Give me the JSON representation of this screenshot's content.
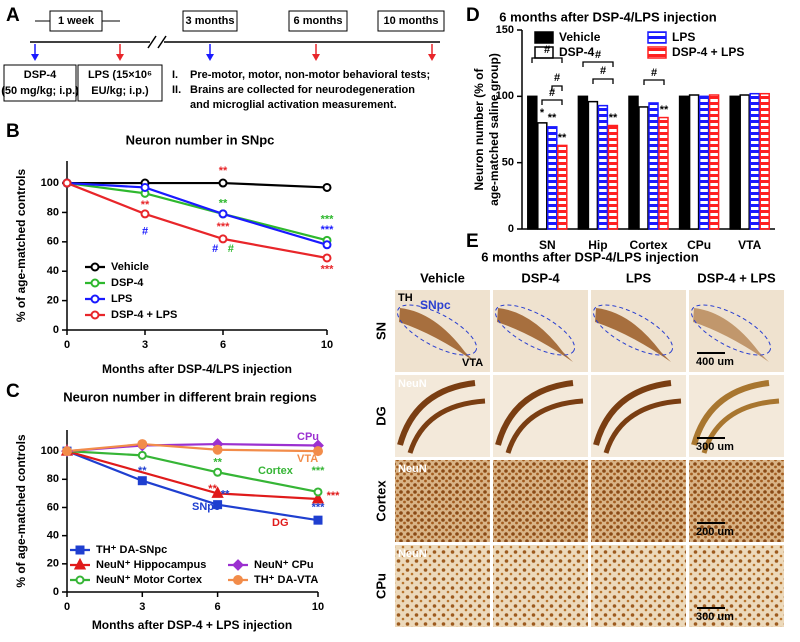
{
  "panel_a": {
    "label": "A",
    "week": "1 week",
    "timepoints": [
      "3 months",
      "6 months",
      "10 months"
    ],
    "boxes": [
      [
        "DSP-4",
        "(50 mg/kg; i.p.)"
      ],
      [
        "LPS (15×10⁶",
        "EU/kg; i.p.)"
      ]
    ],
    "notes": [
      [
        "I.",
        "Pre-motor, motor, non-motor behavioral tests;"
      ],
      [
        "II.",
        "Brains are collected for neurodegeneration"
      ],
      [
        "and microglial activation measurement."
      ]
    ]
  },
  "chart_data": [
    {
      "label": "B",
      "type": "line",
      "title": "Neuron number in SNpc",
      "xlabel": "Months after DSP-4/LPS injection",
      "ylabel": "% of age-matched controls",
      "x": [
        0,
        3,
        6,
        10
      ],
      "xlim": [
        0,
        10
      ],
      "xticks": [
        0,
        3,
        6,
        10
      ],
      "ylim": [
        0,
        115
      ],
      "yticks": [
        0,
        20,
        40,
        60,
        80,
        100
      ],
      "series": [
        {
          "name": "Vehicle",
          "color": "#000000",
          "marker": "circle-open",
          "values": [
            100,
            100,
            100,
            97
          ]
        },
        {
          "name": "DSP-4",
          "color": "#2eb82e",
          "marker": "circle-open",
          "values": [
            100,
            93,
            79,
            61
          ]
        },
        {
          "name": "LPS",
          "color": "#1a1aff",
          "marker": "circle-open",
          "values": [
            100,
            97,
            79,
            58
          ]
        },
        {
          "name": "DSP-4 + LPS",
          "color": "#e8262a",
          "marker": "circle-open",
          "values": [
            100,
            79,
            62,
            49
          ]
        }
      ],
      "annotations": [
        {
          "text": "**",
          "color": "#e8262a"
        },
        {
          "text": "#",
          "color": "#1a1aff"
        },
        {
          "text": "**",
          "color": "#e8262a"
        },
        {
          "text": "**",
          "color": "#2eb82e"
        },
        {
          "text": "***",
          "color": "#e8262a"
        },
        {
          "text": "#",
          "color": "#1a1aff"
        },
        {
          "text": "#",
          "color": "#2eb82e"
        },
        {
          "text": "***",
          "color": "#2eb82e"
        },
        {
          "text": "***",
          "color": "#1a1aff"
        },
        {
          "text": "***",
          "color": "#e8262a"
        }
      ]
    },
    {
      "label": "C",
      "type": "line",
      "title": "Neuron number in different brain regions",
      "xlabel": "Months after DSP-4 + LPS injection",
      "ylabel": "% of age-matched controls",
      "x": [
        0,
        3,
        6,
        10
      ],
      "xlim": [
        0,
        10
      ],
      "xticks": [
        0,
        3,
        6,
        10
      ],
      "ylim": [
        0,
        115
      ],
      "yticks": [
        0,
        20,
        40,
        60,
        80,
        100
      ],
      "series": [
        {
          "name": "TH⁺ DA-SNpc",
          "color": "#1f3fd0",
          "marker": "square",
          "values": [
            100,
            79,
            62,
            51
          ]
        },
        {
          "name": "NeuN⁺ Hippocampus",
          "color": "#e01b1b",
          "marker": "triangle",
          "x": [
            0,
            6,
            10
          ],
          "values": [
            100,
            70,
            66
          ]
        },
        {
          "name": "NeuN⁺ Motor Cortex",
          "color": "#36b536",
          "marker": "circle-open",
          "values": [
            100,
            97,
            85,
            71
          ]
        },
        {
          "name": "NeuN⁺ CPu",
          "color": "#9b30d0",
          "marker": "diamond",
          "values": [
            100,
            104,
            105,
            104
          ]
        },
        {
          "name": "TH⁺ DA-VTA",
          "color": "#f28c4a",
          "marker": "circle",
          "values": [
            100,
            105,
            101,
            100
          ]
        }
      ],
      "region_labels": [
        {
          "text": "CPu",
          "color": "#9b30d0"
        },
        {
          "text": "VTA",
          "color": "#f28c4a"
        },
        {
          "text": "Cortex",
          "color": "#36b536"
        },
        {
          "text": "SNpc",
          "color": "#1f3fd0"
        },
        {
          "text": "DG",
          "color": "#e01b1b"
        }
      ],
      "annotations": [
        {
          "text": "**",
          "color": "#1f3fd0"
        },
        {
          "text": "**",
          "color": "#36b536"
        },
        {
          "text": "**",
          "color": "#e01b1b"
        },
        {
          "text": "**",
          "color": "#1f3fd0"
        },
        {
          "text": "***",
          "color": "#36b536"
        },
        {
          "text": "***",
          "color": "#e01b1b"
        },
        {
          "text": "***",
          "color": "#1f3fd0"
        }
      ]
    },
    {
      "label": "D",
      "type": "bar",
      "title": "6 months after DSP-4/LPS injection",
      "ylabel": [
        "Neuron number (% of",
        "age-matched saline group)"
      ],
      "categories": [
        "SN",
        "Hip",
        "Cortex",
        "CPu",
        "VTA"
      ],
      "ylim": [
        0,
        150
      ],
      "yticks": [
        0,
        50,
        100,
        150
      ],
      "series": [
        {
          "name": "Vehicle",
          "color": "#000000",
          "fill": "solid",
          "values": [
            100,
            100,
            100,
            100,
            100
          ]
        },
        {
          "name": "DSP-4",
          "color": "#000000",
          "fill": "hollow",
          "values": [
            80,
            96,
            92,
            101,
            101
          ]
        },
        {
          "name": "LPS",
          "color": "#1a1aff",
          "fill": "stripes",
          "values": [
            77,
            93,
            95,
            100,
            102
          ]
        },
        {
          "name": "DSP-4 + LPS",
          "color": "#ff2020",
          "fill": "stripes",
          "values": [
            63,
            78,
            84,
            101,
            102
          ]
        }
      ],
      "annotations": [
        {
          "text": "*",
          "color": "#000000"
        },
        {
          "text": "**",
          "color": "#000000"
        },
        {
          "text": "**",
          "color": "#000000"
        },
        {
          "text": "#",
          "color": "#000000"
        },
        {
          "text": "#",
          "color": "#000000"
        },
        {
          "text": "#",
          "color": "#000000"
        },
        {
          "text": "**",
          "color": "#000000"
        },
        {
          "text": "#",
          "color": "#000000"
        },
        {
          "text": "#",
          "color": "#000000"
        },
        {
          "text": "**",
          "color": "#000000"
        },
        {
          "text": "#",
          "color": "#000000"
        }
      ]
    }
  ],
  "panel_e": {
    "label": "E",
    "title": "6 months after DSP-4/LPS injection",
    "columns": [
      "Vehicle",
      "DSP-4",
      "LPS",
      "DSP-4 + LPS"
    ],
    "rows": [
      "SN",
      "DG",
      "Cortex",
      "CPu"
    ],
    "stains": [
      "TH",
      "NeuN",
      "NeuN",
      "NeuN"
    ],
    "regions": [
      "SNpc",
      "VTA"
    ],
    "scale_bars": [
      "400 um",
      "300 um",
      "200 um",
      "300 um"
    ]
  }
}
